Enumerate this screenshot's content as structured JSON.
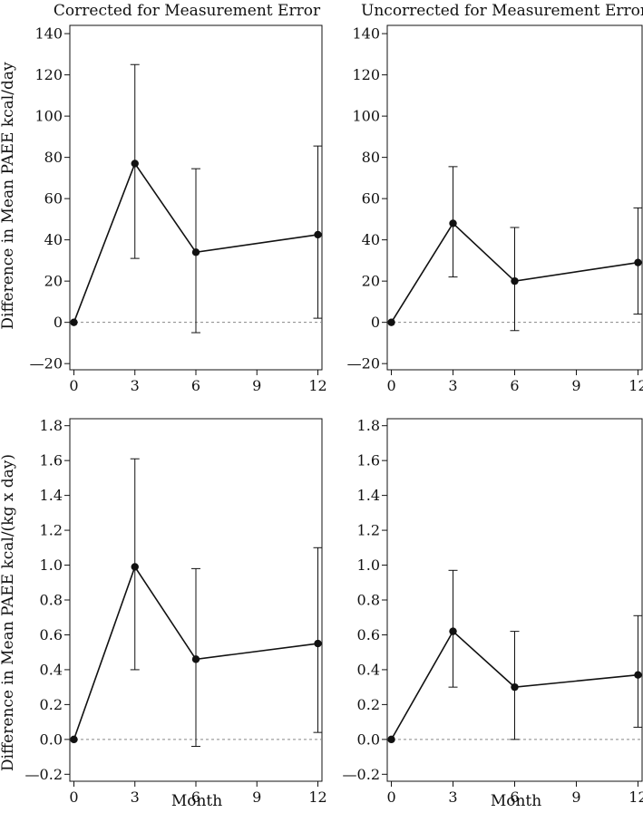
{
  "column_titles": [
    "Corrected for Measurement Error",
    "Uncorrected for Measurement Error"
  ],
  "row_ylabels": [
    "Difference in Mean PAEE kcal/day",
    "Difference in Mean PAEE kcal/(kg x day)"
  ],
  "xlabel": "Month",
  "chart_data": [
    {
      "type": "line",
      "title": "Corrected for Measurement Error",
      "ylabel": "Difference in Mean PAEE kcal/day",
      "xlabel": "",
      "x": [
        0,
        3,
        6,
        12
      ],
      "y": [
        0,
        77,
        34,
        42.5
      ],
      "err_low": [
        0,
        31,
        -5,
        2
      ],
      "err_high": [
        0,
        125,
        74.5,
        85.5
      ],
      "xlim": [
        -0.2,
        12.2
      ],
      "ylim": [
        -23,
        144
      ],
      "xticks": [
        0,
        3,
        6,
        9,
        12
      ],
      "xtick_labels": [
        "0",
        "3",
        "6",
        "9",
        "12"
      ],
      "yticks": [
        -20,
        0,
        20,
        40,
        60,
        80,
        100,
        120,
        140
      ],
      "ytick_labels": [
        "—20",
        "0",
        "20",
        "40",
        "60",
        "80",
        "100",
        "120",
        "140"
      ],
      "ref_line": 0
    },
    {
      "type": "line",
      "title": "Uncorrected for Measurement Error",
      "ylabel": "",
      "xlabel": "",
      "x": [
        0,
        3,
        6,
        12
      ],
      "y": [
        0,
        48,
        20,
        29
      ],
      "err_low": [
        0,
        22,
        -4,
        4
      ],
      "err_high": [
        0,
        75.5,
        46,
        55.5
      ],
      "xlim": [
        -0.2,
        12.2
      ],
      "ylim": [
        -23,
        144
      ],
      "xticks": [
        0,
        3,
        6,
        9,
        12
      ],
      "xtick_labels": [
        "0",
        "3",
        "6",
        "9",
        "12"
      ],
      "yticks": [
        -20,
        0,
        20,
        40,
        60,
        80,
        100,
        120,
        140
      ],
      "ytick_labels": [
        "—20",
        "0",
        "20",
        "40",
        "60",
        "80",
        "100",
        "120",
        "140"
      ],
      "ref_line": 0
    },
    {
      "type": "line",
      "title": "",
      "ylabel": "Difference in Mean PAEE kcal/(kg x day)",
      "xlabel": "Month",
      "x": [
        0,
        3,
        6,
        12
      ],
      "y": [
        0,
        0.99,
        0.46,
        0.55
      ],
      "err_low": [
        0,
        0.4,
        -0.04,
        0.04
      ],
      "err_high": [
        0,
        1.61,
        0.98,
        1.1
      ],
      "xlim": [
        -0.2,
        12.2
      ],
      "ylim": [
        -0.24,
        1.84
      ],
      "xticks": [
        0,
        3,
        6,
        9,
        12
      ],
      "xtick_labels": [
        "0",
        "3",
        "6",
        "9",
        "12"
      ],
      "yticks": [
        -0.2,
        0.0,
        0.2,
        0.4,
        0.6,
        0.8,
        1.0,
        1.2,
        1.4,
        1.6,
        1.8
      ],
      "ytick_labels": [
        "—0.2",
        "0.0",
        "0.2",
        "0.4",
        "0.6",
        "0.8",
        "1.0",
        "1.2",
        "1.4",
        "1.6",
        "1.8"
      ],
      "ref_line": 0
    },
    {
      "type": "line",
      "title": "",
      "ylabel": "",
      "xlabel": "Month",
      "x": [
        0,
        3,
        6,
        12
      ],
      "y": [
        0,
        0.62,
        0.3,
        0.37
      ],
      "err_low": [
        0,
        0.3,
        0.0,
        0.07
      ],
      "err_high": [
        0,
        0.97,
        0.62,
        0.71
      ],
      "xlim": [
        -0.2,
        12.2
      ],
      "ylim": [
        -0.24,
        1.84
      ],
      "xticks": [
        0,
        3,
        6,
        9,
        12
      ],
      "xtick_labels": [
        "0",
        "3",
        "6",
        "9",
        "12"
      ],
      "yticks": [
        -0.2,
        0.0,
        0.2,
        0.4,
        0.6,
        0.8,
        1.0,
        1.2,
        1.4,
        1.6,
        1.8
      ],
      "ytick_labels": [
        "—0.2",
        "0.0",
        "0.2",
        "0.4",
        "0.6",
        "0.8",
        "1.0",
        "1.2",
        "1.4",
        "1.6",
        "1.8"
      ],
      "ref_line": 0
    }
  ]
}
